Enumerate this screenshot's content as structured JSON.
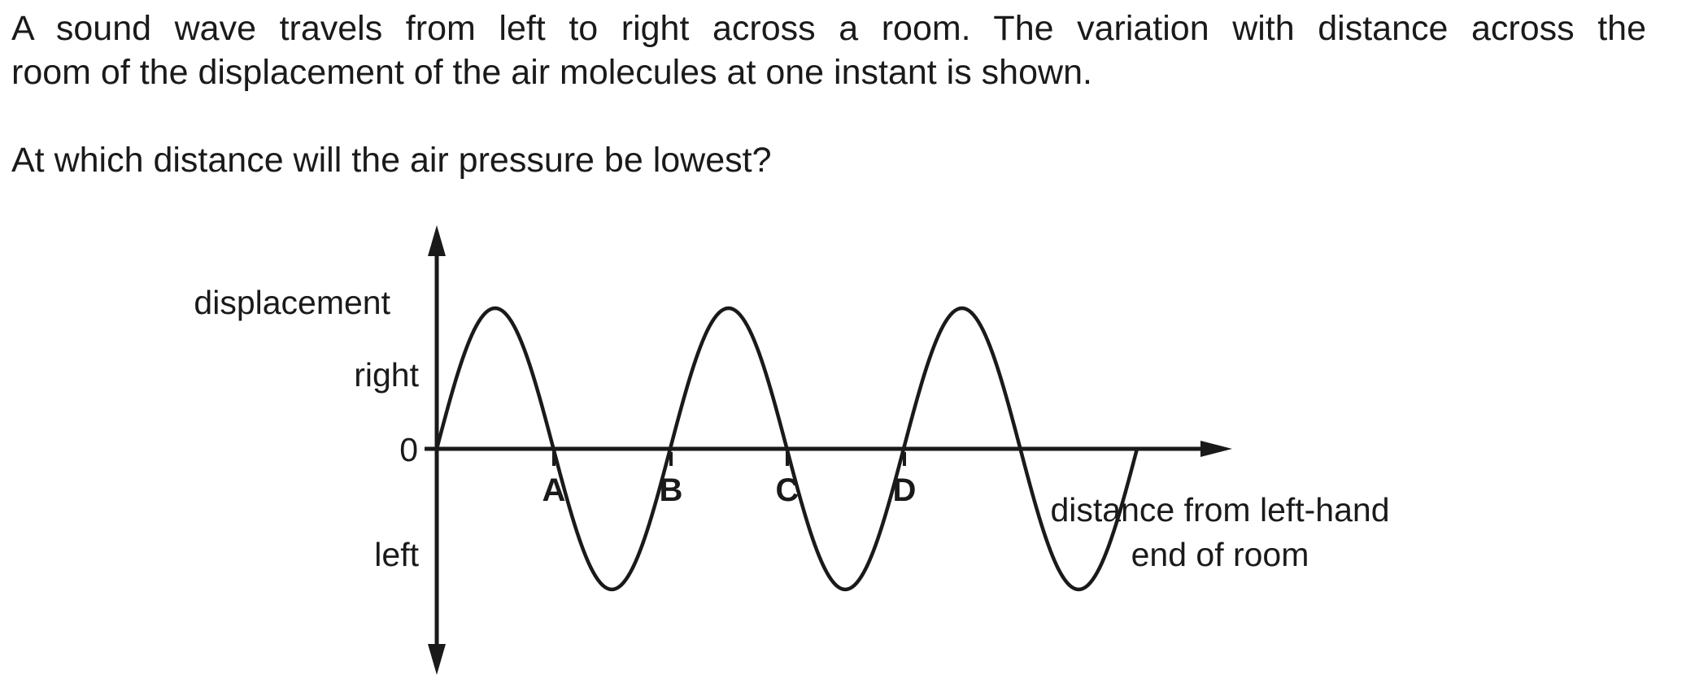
{
  "question": {
    "line1": "A sound wave travels from left to right across a room. The variation with distance across the",
    "line2": "room of the displacement of the air molecules at one instant is shown.",
    "prompt": "At which distance will the air pressure be lowest?"
  },
  "diagram": {
    "y_axis_label": "displacement",
    "y_positive_label": "right",
    "y_zero_label": "0",
    "y_negative_label": "left",
    "x_axis_label_line1": "distance from left-hand",
    "x_axis_label_line2": "end of room",
    "points": [
      {
        "label": "A"
      },
      {
        "label": "B"
      },
      {
        "label": "C"
      },
      {
        "label": "D"
      }
    ],
    "wave": {
      "shape": "sine",
      "half_cycles_shown": 6,
      "starts_at": "zero, increasing toward right displacement"
    },
    "line_color": "#1a1a1a"
  }
}
